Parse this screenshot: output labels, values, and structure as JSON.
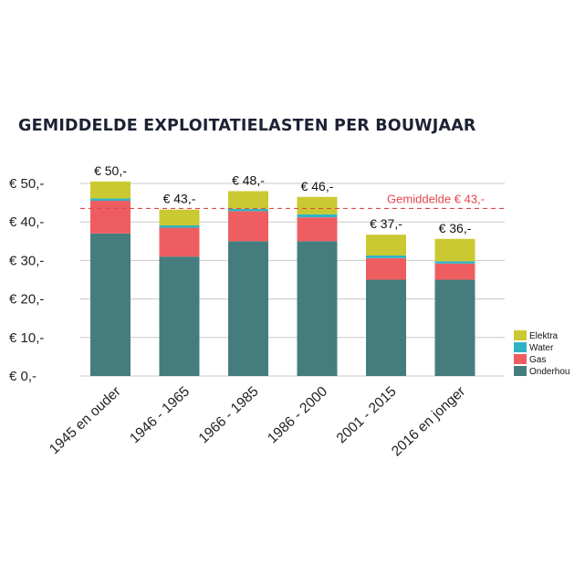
{
  "colors": {
    "Onderhoud": "#457d7f",
    "Gas": "#ee5e61",
    "Water": "#2fb3c4",
    "Elektra": "#cbc931",
    "average_line": "#e0474c",
    "grid": "#c8c8c8"
  },
  "chart_data": {
    "type": "bar",
    "stacked": true,
    "title": "GEMIDDELDE EXPLOITATIELASTEN PER BOUWJAAR",
    "categories": [
      "1945 en ouder",
      "1946 - 1965",
      "1966 - 1985",
      "1986 - 2000",
      "2001 - 2015",
      "2016 en jonger"
    ],
    "series": [
      {
        "name": "Onderhoud",
        "values": [
          37,
          31,
          35,
          35,
          25,
          25
        ]
      },
      {
        "name": "Gas",
        "values": [
          8.5,
          7.5,
          7.8,
          6.2,
          5.6,
          4.2
        ]
      },
      {
        "name": "Water",
        "values": [
          0.6,
          0.6,
          0.6,
          0.8,
          0.7,
          0.6
        ]
      },
      {
        "name": "Elektra",
        "values": [
          4.4,
          4.1,
          4.6,
          4.5,
          5.4,
          5.8
        ]
      }
    ],
    "totals": [
      "€ 50,-",
      "€ 43,-",
      "€ 48,-",
      "€ 46,-",
      "€ 37,-",
      "€ 36,-"
    ],
    "y_ticks": [
      0,
      10,
      20,
      30,
      40,
      50
    ],
    "y_tick_labels": [
      "€ 0,-",
      "€ 10,-",
      "€ 20,-",
      "€ 30,-",
      "€ 40,-",
      "€ 50,-"
    ],
    "ylim": [
      0,
      50
    ],
    "grid": true,
    "reference_line": {
      "value": 43.5,
      "label": "Gemiddelde € 43,-"
    },
    "legend": {
      "position": "right",
      "entries": [
        "Elektra",
        "Water",
        "Gas",
        "Onderhou"
      ]
    }
  }
}
